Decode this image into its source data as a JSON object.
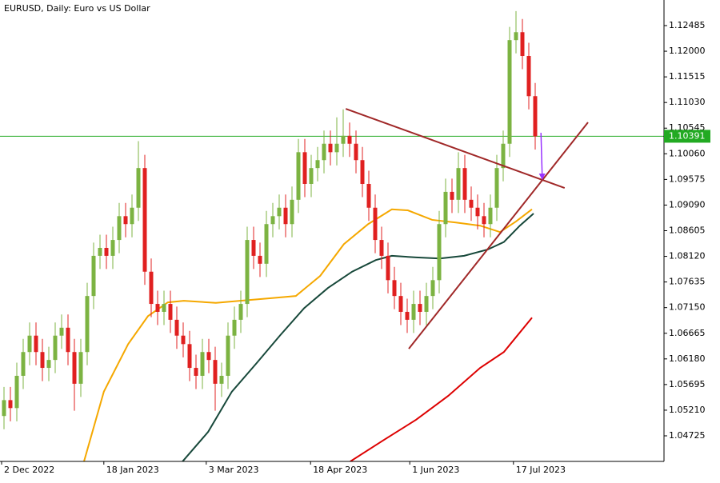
{
  "chart_data": {
    "type": "candlestick",
    "title": "EURUSD, Daily:  Euro vs US Dollar",
    "up_color": "#7cb342",
    "down_color": "#e02020",
    "open": [
      1.051,
      1.054,
      1.0525,
      1.0586,
      1.0631,
      1.0662,
      1.0631,
      1.0601,
      1.0616,
      1.0662,
      1.0677,
      1.0631,
      1.0571,
      1.0631,
      1.0737,
      1.0813,
      1.0828,
      1.0813,
      1.0843,
      1.0888,
      1.0873,
      1.0904,
      1.0979,
      1.0783,
      1.0722,
      1.0707,
      1.0722,
      1.0692,
      1.0662,
      1.0646,
      1.0601,
      1.0586,
      1.0631,
      1.0616,
      1.0571,
      1.0586,
      1.0662,
      1.0692,
      1.0722,
      1.0843,
      1.0813,
      1.0798,
      1.0873,
      1.0888,
      1.0904,
      1.0873,
      1.0919,
      1.1009,
      1.0949,
      1.0979,
      1.0994,
      1.1025,
      1.1009,
      1.1025,
      1.104,
      1.1025,
      1.0994,
      1.0949,
      1.0904,
      1.0843,
      1.0813,
      1.0767,
      1.0737,
      1.0707,
      1.0692,
      1.0722,
      1.0707,
      1.0737,
      1.0767,
      1.0873,
      1.0934,
      1.0919,
      1.0979,
      1.0919,
      1.0904,
      1.0888,
      1.0873,
      1.0904,
      1.0979,
      1.1025,
      1.1221,
      1.1236,
      1.1191,
      1.1115
    ],
    "high": [
      1.0565,
      1.0565,
      1.0611,
      1.0656,
      1.0687,
      1.0687,
      1.0656,
      1.0641,
      1.0687,
      1.0702,
      1.0702,
      1.0656,
      1.0656,
      1.0762,
      1.0838,
      1.0853,
      1.0853,
      1.0868,
      1.0913,
      1.0913,
      1.0929,
      1.103,
      1.1004,
      1.0808,
      1.0747,
      1.0747,
      1.0747,
      1.0717,
      1.0687,
      1.0671,
      1.0626,
      1.0656,
      1.0656,
      1.0641,
      1.0611,
      1.0687,
      1.0717,
      1.0747,
      1.0868,
      1.0868,
      1.0838,
      1.0898,
      1.0913,
      1.0929,
      1.0929,
      1.0944,
      1.1034,
      1.1034,
      1.1004,
      1.1019,
      1.105,
      1.105,
      1.1075,
      1.109,
      1.1065,
      1.105,
      1.1019,
      1.0974,
      1.0929,
      1.0868,
      1.0838,
      1.0792,
      1.0762,
      1.0732,
      1.0747,
      1.0747,
      1.0762,
      1.0792,
      1.0898,
      1.0959,
      1.0959,
      1.1009,
      1.1004,
      1.0944,
      1.0929,
      1.0913,
      1.0929,
      1.1004,
      1.105,
      1.1246,
      1.1276,
      1.1261,
      1.1216,
      1.114
    ],
    "low": [
      1.0485,
      1.05,
      1.05,
      1.0561,
      1.0606,
      1.0606,
      1.0576,
      1.0576,
      1.0591,
      1.0637,
      1.0606,
      1.052,
      1.0546,
      1.0606,
      1.0712,
      1.0788,
      1.0788,
      1.0788,
      1.0818,
      1.0848,
      1.0848,
      1.0879,
      1.0758,
      1.0697,
      1.0682,
      1.0682,
      1.0667,
      1.0637,
      1.0621,
      1.0576,
      1.0561,
      1.0561,
      1.0591,
      1.052,
      1.0546,
      1.0561,
      1.0637,
      1.0667,
      1.0697,
      1.0788,
      1.0773,
      1.0773,
      1.0848,
      1.0863,
      1.0848,
      1.0848,
      1.0894,
      1.0924,
      1.0924,
      1.0954,
      1.0969,
      1.0984,
      1.0984,
      1.1,
      1.1,
      1.0969,
      1.0924,
      1.0879,
      1.0818,
      1.0788,
      1.0742,
      1.0712,
      1.0682,
      1.0667,
      1.0667,
      1.0682,
      1.0682,
      1.0712,
      1.0742,
      1.0848,
      1.0894,
      1.0894,
      1.0894,
      1.0879,
      1.0863,
      1.0848,
      1.0848,
      1.0879,
      1.0954,
      1.1,
      1.1196,
      1.1166,
      1.109,
      1.1014
    ],
    "close": [
      1.054,
      1.0525,
      1.0586,
      1.0631,
      1.0662,
      1.0631,
      1.0601,
      1.0616,
      1.0662,
      1.0677,
      1.0631,
      1.0571,
      1.0631,
      1.0737,
      1.0813,
      1.0828,
      1.0813,
      1.0843,
      1.0888,
      1.0873,
      1.0904,
      1.0979,
      1.0783,
      1.0722,
      1.0707,
      1.0722,
      1.0692,
      1.0662,
      1.0646,
      1.0601,
      1.0586,
      1.0631,
      1.0616,
      1.0571,
      1.0586,
      1.0662,
      1.0692,
      1.0722,
      1.0843,
      1.0813,
      1.0798,
      1.0873,
      1.0888,
      1.0904,
      1.0873,
      1.0919,
      1.1009,
      1.0949,
      1.0979,
      1.0994,
      1.1025,
      1.1009,
      1.1025,
      1.104,
      1.1025,
      1.0994,
      1.0949,
      1.0904,
      1.0843,
      1.0813,
      1.0767,
      1.0737,
      1.0707,
      1.0692,
      1.0722,
      1.0707,
      1.0737,
      1.0767,
      1.0873,
      1.0934,
      1.0919,
      1.0979,
      1.0919,
      1.0904,
      1.0888,
      1.0873,
      1.0904,
      1.0979,
      1.1025,
      1.1221,
      1.1236,
      1.1191,
      1.1115,
      1.1039
    ],
    "xlim": [
      -0.625,
      103.125
    ],
    "xticks": [
      {
        "value": -0.375,
        "label": "2 Dec 2022"
      },
      {
        "value": 15.6,
        "label": "18 Jan 2023"
      },
      {
        "value": 31.6,
        "label": "3 Mar 2023"
      },
      {
        "value": 47.9,
        "label": "18 Apr 2023"
      },
      {
        "value": 63.4,
        "label": "1 Jun 2023"
      },
      {
        "value": 79.6,
        "label": "17 Jul 2023"
      }
    ],
    "ylim": [
      1.04241,
      1.12969
    ],
    "yticks": [
      1.12485,
      {
        "value": 1.12,
        "label": "1.12000"
      },
      1.11515,
      {
        "value": 1.1103,
        "label": "1.11030"
      },
      1.10545,
      {
        "value": 1.1006,
        "label": "1.10060"
      },
      1.09575,
      {
        "value": 1.0909,
        "label": "1.09090"
      },
      1.08605,
      {
        "value": 1.0812,
        "label": "1.08120"
      },
      1.07635,
      {
        "value": 1.0715,
        "label": "1.07150"
      },
      1.06665,
      {
        "value": 1.0618,
        "label": "1.06180"
      },
      1.05695,
      {
        "value": 1.0521,
        "label": "1.05210"
      },
      1.04725
    ],
    "series": [
      {
        "color": "#f5a800",
        "x": [
          12.5,
          15.6,
          19.4,
          22.5,
          25.6,
          28.1,
          33.1,
          36.9,
          41.9,
          45.6,
          49.4,
          53.1,
          56.9,
          60.6,
          63.1,
          66.9,
          70.6,
          74.4,
          77.5,
          80,
          82.5
        ],
        "values": [
          1.0424,
          1.0556,
          1.0646,
          1.0699,
          1.0725,
          1.0728,
          1.0724,
          1.0728,
          1.0733,
          1.0737,
          1.0775,
          1.0835,
          1.0873,
          1.0901,
          1.0899,
          1.0881,
          1.0876,
          1.087,
          1.0858,
          1.0878,
          1.0901
        ]
      },
      {
        "color": "#17483a",
        "x": [
          27.9,
          31.9,
          35.6,
          39.4,
          43.1,
          46.9,
          50.6,
          54.4,
          58.1,
          60.6,
          64.4,
          68.1,
          71.9,
          75.6,
          78.1,
          80.6,
          82.75
        ],
        "values": [
          1.0424,
          1.048,
          1.0556,
          1.0609,
          1.0662,
          1.0714,
          1.0752,
          1.0783,
          1.0805,
          1.0813,
          1.081,
          1.0808,
          1.0813,
          1.0825,
          1.0839,
          1.087,
          1.0893
        ]
      },
      {
        "color": "#dd0000",
        "x": [
          54.1,
          59.4,
          64.4,
          69.4,
          74.4,
          78.1,
          82.5
        ],
        "values": [
          1.0424,
          1.0465,
          1.0503,
          1.0548,
          1.0601,
          1.0631,
          1.0696
        ]
      }
    ],
    "trendlines": [
      {
        "color": "#a02828",
        "x": [
          53.4,
          87.6
        ],
        "values": [
          1.10911,
          1.09413
        ]
      },
      {
        "color": "#a02828",
        "x": [
          63.25,
          91.25
        ],
        "values": [
          1.06372,
          1.10654
        ]
      }
    ],
    "arrow": {
      "color": "#9933ff",
      "x": [
        83.9,
        84.1
      ],
      "values": [
        1.10457,
        1.0961
      ]
    },
    "hline": {
      "value": 1.10391,
      "color": "#22aa22"
    }
  }
}
